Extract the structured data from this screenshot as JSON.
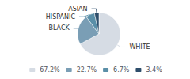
{
  "chart_data": {
    "type": "pie",
    "categories": [
      "WHITE",
      "BLACK",
      "HISPANIC",
      "ASIAN"
    ],
    "values": [
      67.2,
      22.7,
      6.7,
      3.4
    ],
    "value_labels": [
      "67.2%",
      "22.7%",
      "6.7%",
      "3.4%"
    ],
    "colors": [
      "#d6dce4",
      "#7a9eb5",
      "#5a8fa8",
      "#2e4e6b"
    ],
    "legend": "bottom"
  }
}
